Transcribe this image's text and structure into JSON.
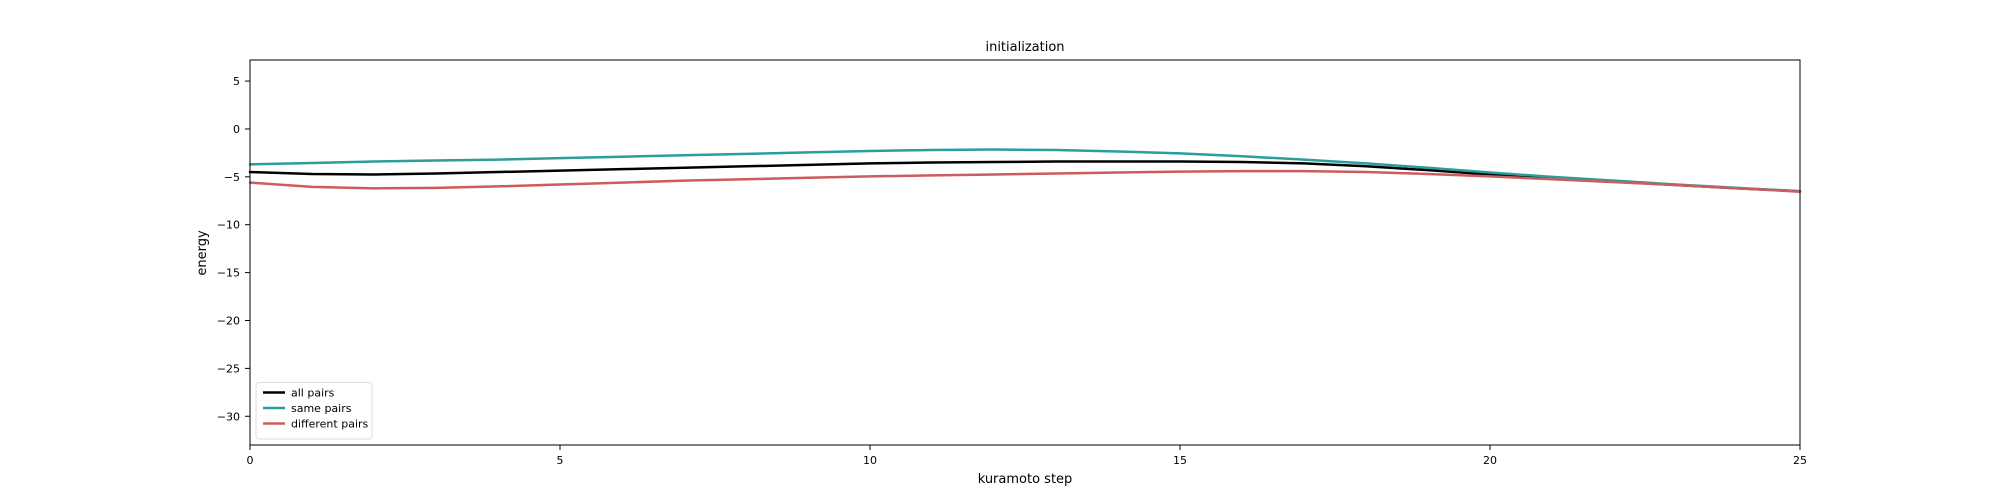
{
  "chart_data": {
    "type": "line",
    "title": "initialization",
    "xlabel": "kuramoto step",
    "ylabel": "energy",
    "xlim": [
      0,
      25
    ],
    "ylim": [
      -33,
      7.2
    ],
    "xticks": [
      0,
      5,
      10,
      15,
      20,
      25
    ],
    "xtick_labels": [
      "0",
      "5",
      "10",
      "15",
      "20",
      "25"
    ],
    "yticks": [
      5,
      0,
      -5,
      -10,
      -15,
      -20,
      -25,
      -30
    ],
    "ytick_labels": [
      "5",
      "0",
      "−5",
      "−10",
      "−15",
      "−20",
      "−25",
      "−30"
    ],
    "grid": false,
    "legend_position": "lower-left",
    "x": [
      0,
      1,
      2,
      3,
      4,
      5,
      6,
      7,
      8,
      9,
      10,
      11,
      12,
      13,
      14,
      15,
      16,
      17,
      18,
      19,
      20,
      21,
      22,
      23,
      24,
      25
    ],
    "series": [
      {
        "name": "all pairs",
        "color": "#000000",
        "values": [
          -4.5,
          -4.7,
          -4.75,
          -4.65,
          -4.5,
          -4.35,
          -4.2,
          -4.05,
          -3.9,
          -3.75,
          -3.6,
          -3.5,
          -3.45,
          -3.4,
          -3.4,
          -3.4,
          -3.45,
          -3.6,
          -3.9,
          -4.3,
          -4.75,
          -5.15,
          -5.5,
          -5.85,
          -6.2,
          -6.5
        ]
      },
      {
        "name": "same pairs",
        "color": "#2a9d9c",
        "values": [
          -3.7,
          -3.55,
          -3.4,
          -3.3,
          -3.2,
          -3.05,
          -2.9,
          -2.75,
          -2.6,
          -2.45,
          -2.3,
          -2.2,
          -2.15,
          -2.2,
          -2.35,
          -2.55,
          -2.85,
          -3.2,
          -3.6,
          -4.05,
          -4.55,
          -5.0,
          -5.4,
          -5.8,
          -6.15,
          -6.5
        ]
      },
      {
        "name": "different pairs",
        "color": "#cd5c5c",
        "values": [
          -5.6,
          -6.05,
          -6.2,
          -6.15,
          -6.0,
          -5.8,
          -5.6,
          -5.4,
          -5.25,
          -5.1,
          -4.95,
          -4.85,
          -4.75,
          -4.65,
          -4.55,
          -4.45,
          -4.4,
          -4.4,
          -4.5,
          -4.7,
          -4.95,
          -5.25,
          -5.55,
          -5.85,
          -6.2,
          -6.55
        ]
      }
    ]
  }
}
